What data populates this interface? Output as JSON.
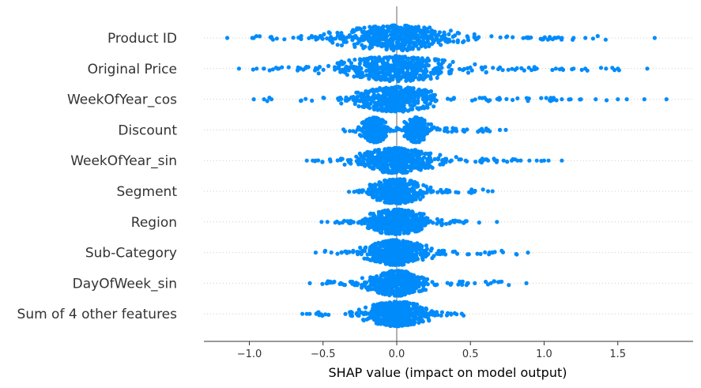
{
  "chart_data": {
    "type": "scatter",
    "subtype": "shap-beeswarm",
    "title": "",
    "xlabel": "SHAP value (impact on model output)",
    "ylabel": "",
    "xlim": [
      -1.3,
      1.97
    ],
    "xticks": [
      -1.0,
      -0.5,
      0.0,
      0.5,
      1.0,
      1.5
    ],
    "xtick_labels": [
      "−1.0",
      "−0.5",
      "0.0",
      "0.5",
      "1.0",
      "1.5"
    ],
    "grid": false,
    "zero_line": true,
    "point_color": "#008bfb",
    "features": [
      {
        "name": "Product ID",
        "min": -1.15,
        "max": 1.75,
        "core_spread": 0.32,
        "outliers": [
          -1.15,
          -0.98,
          -0.97,
          -0.85,
          0.9,
          1.0,
          1.08,
          1.12,
          1.2,
          1.28,
          1.75
        ]
      },
      {
        "name": "Original Price",
        "min": -1.07,
        "max": 1.7,
        "core_spread": 0.32,
        "outliers": [
          -1.07,
          -0.95,
          -0.9,
          -0.8,
          0.95,
          1.08,
          1.12,
          1.2,
          1.28,
          1.42,
          1.5,
          1.7
        ]
      },
      {
        "name": "WeekOfYear_cos",
        "min": -0.97,
        "max": 1.83,
        "core_spread": 0.22,
        "outliers": [
          -0.97,
          -0.9,
          -0.85,
          1.05,
          1.12,
          1.18,
          1.25,
          1.35,
          1.5,
          1.68,
          1.83
        ]
      },
      {
        "name": "Discount",
        "min": -0.4,
        "max": 0.74,
        "core_spread": 0.16,
        "bimodal": [
          -0.15,
          0.13
        ],
        "outliers": [
          0.62,
          0.7,
          0.74
        ]
      },
      {
        "name": "WeekOfYear_sin",
        "min": -0.61,
        "max": 1.12,
        "core_spread": 0.2,
        "outliers": [
          -0.61,
          -0.57,
          -0.55,
          0.62,
          0.68,
          0.78,
          0.82,
          0.9,
          0.95,
          1.0,
          1.03,
          1.12
        ]
      },
      {
        "name": "Segment",
        "min": -0.33,
        "max": 0.65,
        "core_spread": 0.15,
        "outliers": [
          0.62,
          0.65
        ]
      },
      {
        "name": "Region",
        "min": -0.51,
        "max": 0.68,
        "core_spread": 0.17,
        "outliers": [
          -0.51,
          -0.47,
          0.68
        ]
      },
      {
        "name": "Sub-Category",
        "min": -0.55,
        "max": 0.89,
        "core_spread": 0.16,
        "outliers": [
          -0.55,
          0.63,
          0.65,
          0.89
        ]
      },
      {
        "name": "DayOfWeek_sin",
        "min": -0.59,
        "max": 0.88,
        "core_spread": 0.15,
        "outliers": [
          -0.59,
          -0.47,
          -0.38,
          0.48,
          0.53,
          0.88
        ]
      },
      {
        "name": "Sum of 4 other features",
        "min": -0.64,
        "max": 0.54,
        "core_spread": 0.17,
        "outliers": [
          -0.64,
          -0.61
        ]
      }
    ]
  }
}
